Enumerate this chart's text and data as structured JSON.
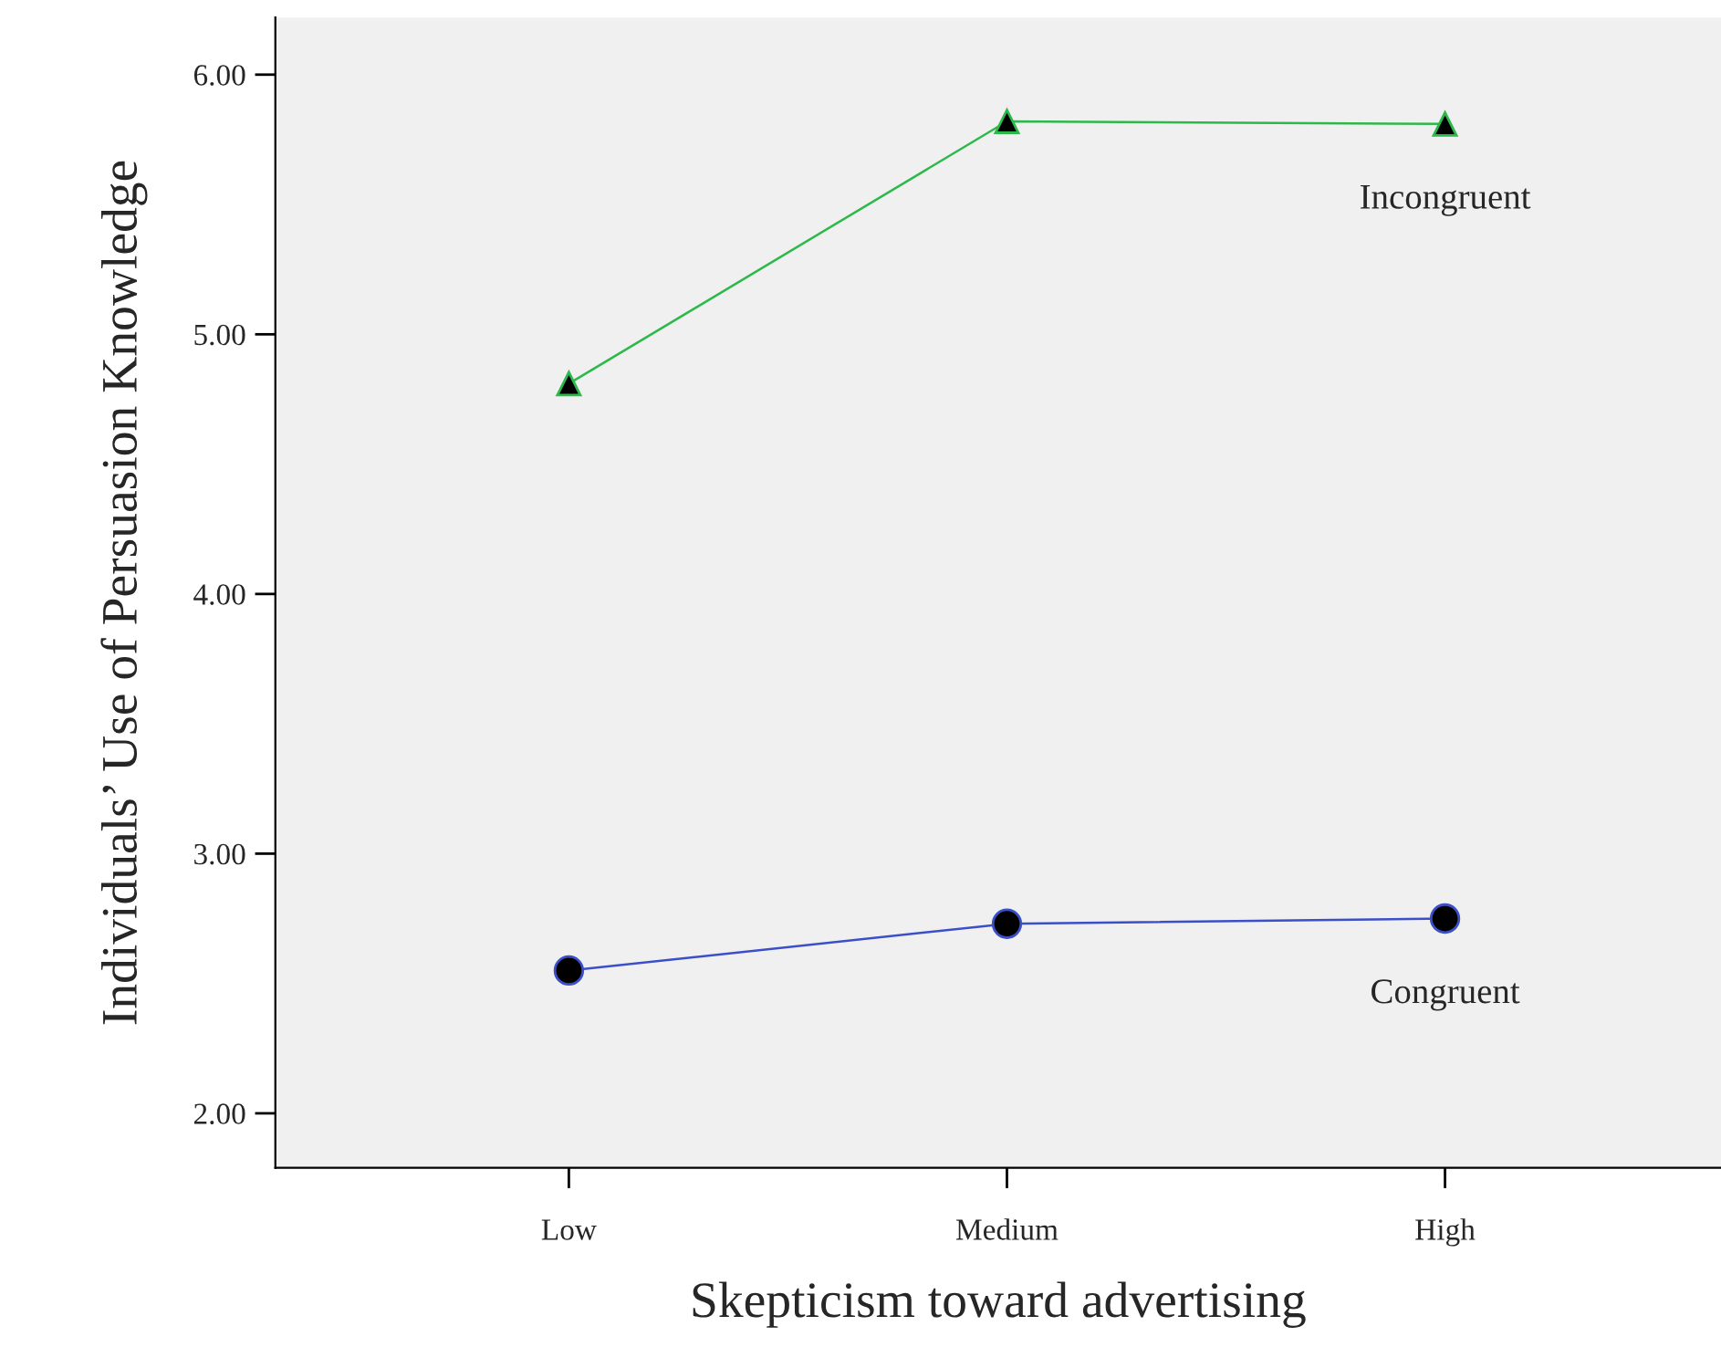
{
  "chart_data": {
    "type": "line",
    "xlabel": "Skepticism toward advertising",
    "ylabel": "Individuals’ Use of Persuasion Knowledge",
    "categories": [
      "Low",
      "Medium",
      "High"
    ],
    "series": [
      {
        "name": "Incongruent",
        "color": "#2db84a",
        "marker": "triangle",
        "values": [
          4.81,
          5.82,
          5.81
        ]
      },
      {
        "name": "Congruent",
        "color": "#3a4fc8",
        "marker": "circle",
        "values": [
          2.55,
          2.73,
          2.75
        ]
      }
    ],
    "ylim": [
      1.79,
      6.22
    ],
    "yticks": [
      {
        "value": 2,
        "label": "2.00"
      },
      {
        "value": 3,
        "label": "3.00"
      },
      {
        "value": 4,
        "label": "4.00"
      },
      {
        "value": 5,
        "label": "5.00"
      },
      {
        "value": 6,
        "label": "6.00"
      }
    ],
    "grid": false,
    "legend": false
  }
}
